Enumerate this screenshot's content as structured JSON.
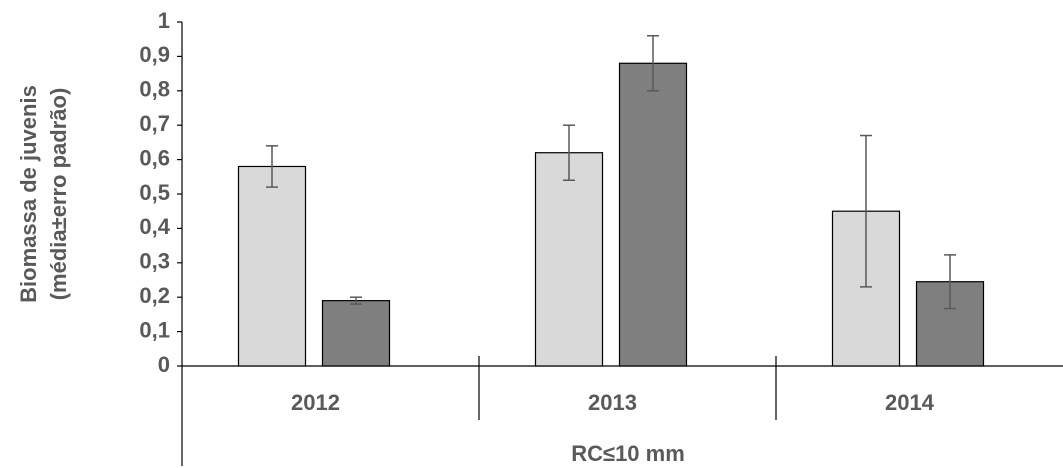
{
  "chart_data": {
    "type": "bar",
    "ylabel": [
      "Biomassa de juvenis",
      "(média±erro padrão)"
    ],
    "xlabel": "RC≤10 mm",
    "categories": [
      "2012",
      "2013",
      "2014"
    ],
    "series": [
      {
        "color": "#d9d9d9",
        "values": [
          0.58,
          0.62,
          0.45
        ],
        "errors": [
          0.06,
          0.08,
          0.22
        ]
      },
      {
        "color": "#7f7f7f",
        "values": [
          0.19,
          0.88,
          0.245
        ],
        "errors": [
          0.01,
          0.08,
          0.078
        ]
      }
    ],
    "ylim": [
      0,
      1
    ],
    "yticks": [
      0,
      {
        "value": 0.1,
        "label": "0,1"
      },
      {
        "value": 0.2,
        "label": "0,2"
      },
      {
        "value": 0.3,
        "label": "0,3"
      },
      {
        "value": 0.4,
        "label": "0,4"
      },
      {
        "value": 0.5,
        "label": "0,5"
      },
      {
        "value": 0.6,
        "label": "0,6"
      },
      {
        "value": 0.7,
        "label": "0,7"
      },
      {
        "value": 0.8,
        "label": "0,8"
      },
      {
        "value": 0.9,
        "label": "0,9"
      },
      1
    ]
  }
}
